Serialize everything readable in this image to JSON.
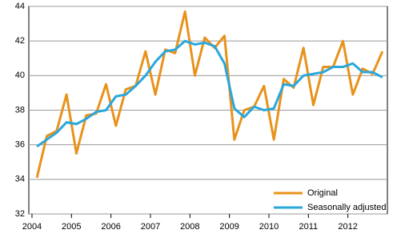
{
  "chart_data": {
    "type": "line",
    "x": [
      2004.125,
      2004.375,
      2004.625,
      2004.875,
      2005.125,
      2005.375,
      2005.625,
      2005.875,
      2006.125,
      2006.375,
      2006.625,
      2006.875,
      2007.125,
      2007.375,
      2007.625,
      2007.875,
      2008.125,
      2008.375,
      2008.625,
      2008.875,
      2009.125,
      2009.375,
      2009.625,
      2009.875,
      2010.125,
      2010.375,
      2010.625,
      2010.875,
      2011.125,
      2011.375,
      2011.625,
      2011.875,
      2012.125,
      2012.375,
      2012.625,
      2012.875
    ],
    "series": [
      {
        "name": "Original",
        "color": "#e8921c",
        "values": [
          34.1,
          36.5,
          36.8,
          38.9,
          35.5,
          37.7,
          37.8,
          39.5,
          37.1,
          39.2,
          39.4,
          41.4,
          38.9,
          41.5,
          41.3,
          43.7,
          40.0,
          42.2,
          41.6,
          42.3,
          36.3,
          38.0,
          38.2,
          39.4,
          36.3,
          39.8,
          39.3,
          41.6,
          38.3,
          40.5,
          40.5,
          42.0,
          38.9,
          40.4,
          40.1,
          41.4
        ]
      },
      {
        "name": "Seasonally adjusted",
        "color": "#2aa7dc",
        "values": [
          35.9,
          36.3,
          36.7,
          37.3,
          37.2,
          37.5,
          37.9,
          38.0,
          38.8,
          38.9,
          39.4,
          40.0,
          40.8,
          41.4,
          41.5,
          42.0,
          41.8,
          41.9,
          41.7,
          40.7,
          38.1,
          37.6,
          38.2,
          38.0,
          38.1,
          39.5,
          39.4,
          40.0,
          40.1,
          40.2,
          40.5,
          40.5,
          40.7,
          40.2,
          40.2,
          39.9
        ]
      }
    ],
    "xlim": [
      2003.92,
      2013.0
    ],
    "xticks": [
      2004,
      2005,
      2006,
      2007,
      2008,
      2009,
      2010,
      2011,
      2012
    ],
    "ylim": [
      32,
      44
    ],
    "yticks": [
      32,
      34,
      36,
      38,
      40,
      42,
      44
    ],
    "grid": true,
    "legend": "lower right"
  }
}
